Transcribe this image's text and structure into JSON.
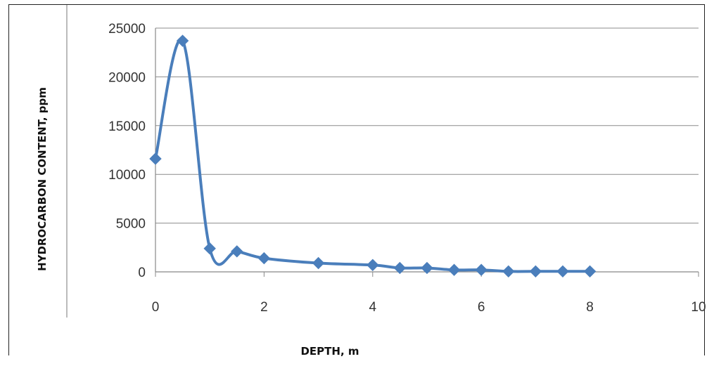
{
  "chart_data": {
    "type": "scatter",
    "xlabel": "DEPTH, m",
    "ylabel": "HYDROCARBON CONTENT, ppm",
    "xlim": [
      0,
      10
    ],
    "ylim": [
      0,
      25000
    ],
    "x_ticks": [
      "0",
      "2",
      "4",
      "6",
      "8",
      "10"
    ],
    "y_ticks": [
      "0",
      "5000",
      "10000",
      "15000",
      "20000",
      "25000"
    ],
    "grid": "horizontal",
    "smoothed_line": true,
    "marker": "diamond",
    "series_color": "#4a7ebb",
    "series": [
      {
        "x": [
          0,
          0.5,
          1,
          1.5,
          2,
          3,
          4,
          4.5,
          5,
          5.5,
          6,
          6.5,
          7,
          7.5,
          8
        ],
        "y": [
          11600,
          23700,
          2400,
          2100,
          1400,
          900,
          700,
          400,
          400,
          200,
          200,
          50,
          50,
          50,
          50
        ]
      }
    ]
  }
}
